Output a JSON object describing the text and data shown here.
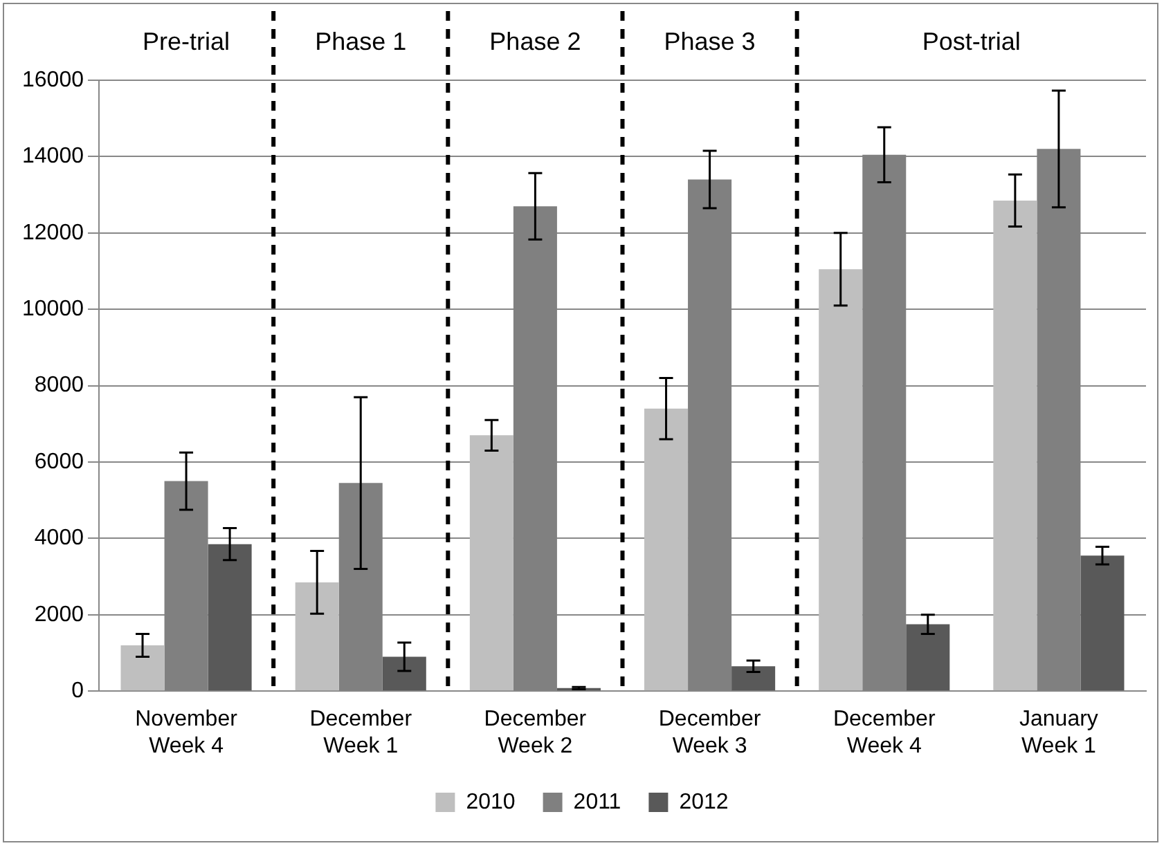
{
  "chart_data": {
    "type": "bar",
    "categories": [
      "November Week 4",
      "December Week 1",
      "December Week 2",
      "December Week 3",
      "December Week 4",
      "January Week 1"
    ],
    "series": [
      {
        "name": "2010",
        "color": "#bfbfbf",
        "values": [
          1200,
          2850,
          6700,
          7400,
          11050,
          12850
        ],
        "errors": [
          300,
          820,
          400,
          800,
          950,
          680
        ]
      },
      {
        "name": "2011",
        "color": "#808080",
        "values": [
          5500,
          5450,
          12700,
          13400,
          14050,
          14200
        ],
        "errors": [
          750,
          2250,
          870,
          750,
          720,
          1530
        ]
      },
      {
        "name": "2012",
        "color": "#595959",
        "values": [
          3850,
          900,
          80,
          650,
          1750,
          3550
        ],
        "errors": [
          420,
          370,
          30,
          150,
          250,
          230
        ]
      }
    ],
    "ylim": [
      0,
      16000
    ],
    "yticks": [
      0,
      2000,
      4000,
      6000,
      8000,
      10000,
      12000,
      14000,
      16000
    ],
    "grid": "y",
    "legend": "bottom",
    "annotations": [
      "Pre-trial",
      "Phase 1",
      "Phase 2",
      "Phase 3",
      "Post-trial"
    ]
  }
}
